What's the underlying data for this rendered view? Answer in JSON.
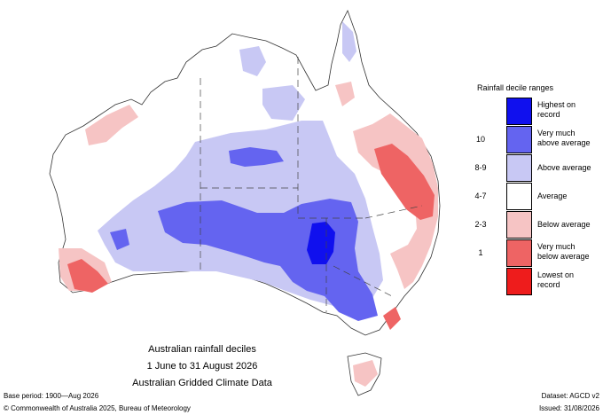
{
  "caption": {
    "line1": "Australian rainfall deciles",
    "line2": "1 June to 31 August 2026",
    "line3": "Australian Gridded Climate Data"
  },
  "legend": {
    "title": "Rainfall decile ranges",
    "rows": [
      {
        "range": "",
        "label_line1": "Highest on",
        "label_line2": "record",
        "color": "#1010ee"
      },
      {
        "range": "10",
        "label_line1": "Very much",
        "label_line2": "above average",
        "color": "#6464f0"
      },
      {
        "range": "8-9",
        "label_line1": "Above average",
        "label_line2": "",
        "color": "#c8c8f4"
      },
      {
        "range": "4-7",
        "label_line1": "Average",
        "label_line2": "",
        "color": "#ffffff"
      },
      {
        "range": "2-3",
        "label_line1": "Below average",
        "label_line2": "",
        "color": "#f6c4c4"
      },
      {
        "range": "1",
        "label_line1": "Very much",
        "label_line2": "below average",
        "color": "#ee6464"
      },
      {
        "range": "",
        "label_line1": "Lowest on",
        "label_line2": "record",
        "color": "#ee1c1c"
      }
    ]
  },
  "footer": {
    "base_period": "Base period: 1900—Aug 2026",
    "dataset": "Dataset: AGCD v2",
    "copyright": "© Commonwealth of Australia 2025, Bureau of Meteorology",
    "issued": "Issued: 31/08/2026"
  }
}
